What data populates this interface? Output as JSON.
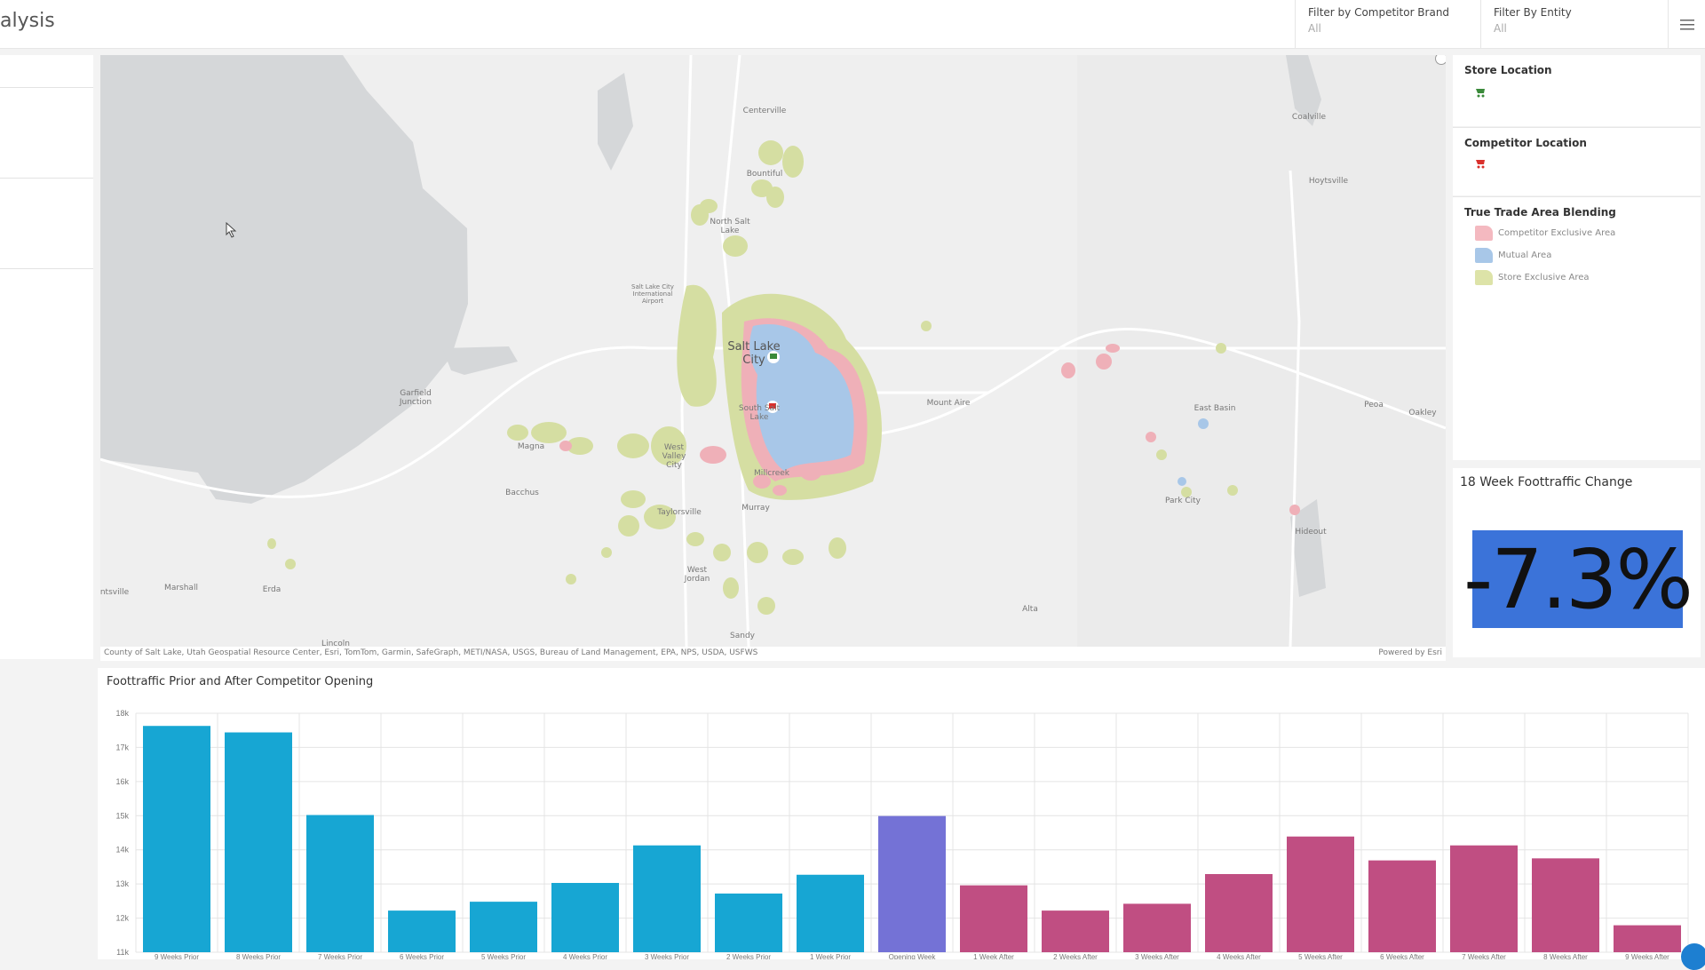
{
  "header": {
    "title": "alysis",
    "filters": [
      {
        "label": "Filter by Competitor Brand",
        "value": "All"
      },
      {
        "label": "Filter By Entity",
        "value": "All"
      }
    ],
    "menu_icon": "hamburger-menu-icon"
  },
  "map": {
    "labels": [
      "Centerville",
      "Bountiful",
      "North Salt Lake",
      "Salt Lake City International Airport",
      "Salt Lake City",
      "South Salt Lake",
      "Magna",
      "West Valley City",
      "Taylorsville",
      "Millcreek",
      "Murray",
      "West Jordan",
      "Sandy",
      "Bacchus",
      "Garfield Junction",
      "Marshall",
      "Erda",
      "Lincoln",
      "Mount Aire",
      "Coalville",
      "Hoytsville",
      "East Basin",
      "Park City",
      "Hideout",
      "Peoa",
      "Oakley",
      "Alta",
      "ntsville"
    ],
    "attribution": "County of Salt Lake, Utah Geospatial Resource Center, Esri, TomTom, Garmin, SafeGraph, METI/NASA, USGS, Bureau of Land Management, EPA, NPS, USDA, USFWS",
    "powered_by": "Powered by Esri",
    "colors": {
      "store_exclusive": "#d5dea2",
      "mutual": "#a8c7e8",
      "competitor_exclusive": "#efb0b8",
      "water": "#d5d7d9",
      "land": "#efefef"
    }
  },
  "legend": {
    "store_location": {
      "title": "Store Location",
      "icon": "green-shopping-cart-icon",
      "color": "#3a8a3a"
    },
    "competitor_location": {
      "title": "Competitor Location",
      "icon": "red-shopping-cart-icon",
      "color": "#d9302c"
    },
    "trade_area": {
      "title": "True Trade Area Blending",
      "items": [
        {
          "label": "Competitor Exclusive Area",
          "color": "#f4b9c0"
        },
        {
          "label": "Mutual Area",
          "color": "#a8c7e8"
        },
        {
          "label": "Store Exclusive Area",
          "color": "#dde3a8"
        }
      ]
    }
  },
  "kpi": {
    "title": "18 Week Foottraffic Change",
    "value": "-7.3%",
    "color": "#3b73d9"
  },
  "chart_data": {
    "type": "bar",
    "title": "Foottraffic Prior and After Competitor Opening",
    "categories": [
      "9 Weeks Prior",
      "8 Weeks Prior",
      "7 Weeks Prior",
      "6 Weeks Prior",
      "5 Weeks Prior",
      "4 Weeks Prior",
      "3 Weeks Prior",
      "2 Weeks Prior",
      "1 Week Prior",
      "Opening Week",
      "1 Week After",
      "2 Weeks After",
      "3 Weeks After",
      "4 Weeks After",
      "5 Weeks After",
      "6 Weeks After",
      "7 Weeks After",
      "8 Weeks After",
      "9 Weeks After"
    ],
    "values": [
      17630,
      17440,
      15020,
      12220,
      12480,
      13030,
      14130,
      12720,
      13270,
      14990,
      12960,
      12220,
      12420,
      13290,
      14390,
      13690,
      14130,
      13750,
      11790
    ],
    "colors": {
      "prior": "#17a6d3",
      "opening": "#7472d6",
      "after": "#c04e82"
    },
    "yticks": [
      "11k",
      "12k",
      "13k",
      "14k",
      "15k",
      "16k",
      "17k",
      "18k"
    ],
    "ylim": [
      11000,
      18000
    ],
    "grid": true
  }
}
